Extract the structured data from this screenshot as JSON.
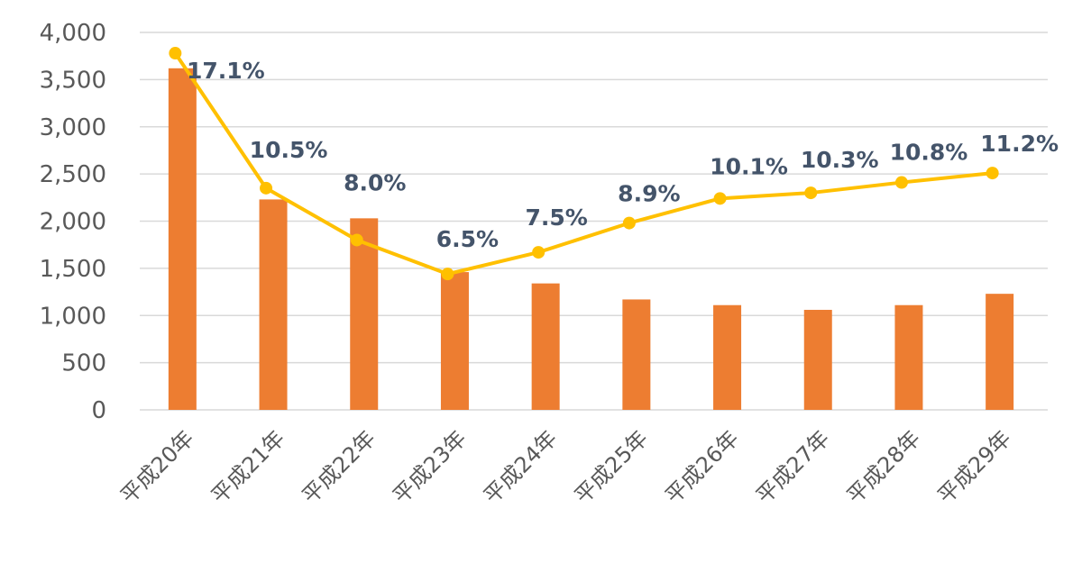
{
  "chart_data": {
    "type": "bar",
    "categories": [
      "平成20年",
      "平成21年",
      "平成22年",
      "平成23年",
      "平成24年",
      "平成25年",
      "平成26年",
      "平成27年",
      "平成28年",
      "平成29年"
    ],
    "ylim": [
      0,
      4000
    ],
    "yticks": [
      "0",
      "500",
      "1,000",
      "1,500",
      "2,000",
      "2,500",
      "3,000",
      "3,500",
      "4,000"
    ],
    "ytick_values": [
      0,
      500,
      1000,
      1500,
      2000,
      2500,
      3000,
      3500,
      4000
    ],
    "grid": true,
    "series": [
      {
        "type": "bar",
        "color": "#ed7d31",
        "values": [
          3620,
          2230,
          2030,
          1460,
          1340,
          1170,
          1110,
          1060,
          1110,
          1230
        ]
      },
      {
        "type": "line",
        "color": "#ffc000",
        "values": [
          3780,
          2350,
          1800,
          1440,
          1670,
          1980,
          2240,
          2300,
          2410,
          2510
        ],
        "labels": [
          "17.1%",
          "10.5%",
          "8.0%",
          "6.5%",
          "7.5%",
          "8.9%",
          "10.1%",
          "10.3%",
          "10.8%",
          "11.2%"
        ]
      }
    ]
  }
}
